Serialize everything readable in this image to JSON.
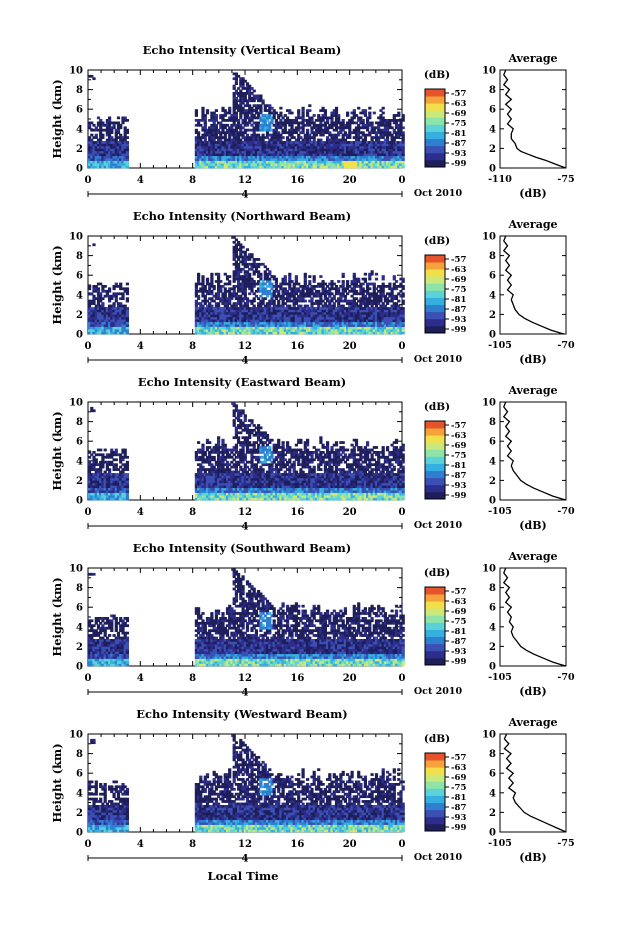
{
  "figure": {
    "xlabel_bottom": "Local Time",
    "date_label": "Oct 2010",
    "day_label": "4",
    "ylabel": "Height (km)",
    "cb_unit": "(dB)",
    "avg_title": "Average",
    "avg_unit": "(dB)"
  },
  "chart_data": [
    {
      "type": "heatmap",
      "title": "Echo Intensity (Vertical Beam)",
      "ylabel": "Height (km)",
      "x_ticks": [
        "0",
        "4",
        "8",
        "12",
        "16",
        "20",
        "0"
      ],
      "y_ticks": [
        "0",
        "2",
        "4",
        "6",
        "8",
        "10"
      ],
      "xlim": [
        0,
        24
      ],
      "ylim": [
        0,
        10
      ],
      "colorbar": {
        "label": "(dB)",
        "ticks": [
          "-57",
          "-63",
          "-69",
          "-75",
          "-81",
          "-87",
          "-93",
          "-99"
        ]
      },
      "data_gap": [
        3,
        8
      ],
      "profile": {
        "title": "Average",
        "xlabel": "(dB)",
        "x_ticks": [
          "-110",
          "-75"
        ],
        "xlim": [
          -110,
          -75
        ],
        "points": [
          [
            -107,
            10
          ],
          [
            -108,
            9.5
          ],
          [
            -106,
            9
          ],
          [
            -108,
            8.5
          ],
          [
            -105,
            8
          ],
          [
            -107,
            7.5
          ],
          [
            -104,
            7
          ],
          [
            -107,
            6.5
          ],
          [
            -104,
            6
          ],
          [
            -106,
            5.5
          ],
          [
            -104,
            5
          ],
          [
            -106,
            4.5
          ],
          [
            -103,
            4
          ],
          [
            -104,
            3.5
          ],
          [
            -104,
            3
          ],
          [
            -102,
            2.5
          ],
          [
            -101,
            2
          ],
          [
            -99,
            1.7
          ],
          [
            -95,
            1.4
          ],
          [
            -91,
            1.1
          ],
          [
            -86,
            0.8
          ],
          [
            -82,
            0.5
          ],
          [
            -78,
            0.2
          ],
          [
            -75,
            0
          ]
        ]
      }
    },
    {
      "type": "heatmap",
      "title": "Echo Intensity (Northward Beam)",
      "ylabel": "Height (km)",
      "x_ticks": [
        "0",
        "4",
        "8",
        "12",
        "16",
        "20",
        "0"
      ],
      "y_ticks": [
        "0",
        "2",
        "4",
        "6",
        "8",
        "10"
      ],
      "xlim": [
        0,
        24
      ],
      "ylim": [
        0,
        10
      ],
      "colorbar": {
        "label": "(dB)",
        "ticks": [
          "-57",
          "-63",
          "-69",
          "-75",
          "-81",
          "-87",
          "-93",
          "-99"
        ]
      },
      "data_gap": [
        3,
        8
      ],
      "profile": {
        "title": "Average",
        "xlabel": "(dB)",
        "x_ticks": [
          "-105",
          "-70"
        ],
        "xlim": [
          -105,
          -70
        ],
        "points": [
          [
            -102,
            10
          ],
          [
            -103,
            9.5
          ],
          [
            -101,
            9
          ],
          [
            -103,
            8.5
          ],
          [
            -100,
            8
          ],
          [
            -102,
            7.5
          ],
          [
            -100,
            7
          ],
          [
            -102,
            6.5
          ],
          [
            -99,
            6
          ],
          [
            -101,
            5.5
          ],
          [
            -99,
            5
          ],
          [
            -101,
            4.5
          ],
          [
            -98,
            4
          ],
          [
            -99,
            3.5
          ],
          [
            -98,
            3
          ],
          [
            -97,
            2.5
          ],
          [
            -95,
            2
          ],
          [
            -92,
            1.6
          ],
          [
            -88,
            1.2
          ],
          [
            -83,
            0.8
          ],
          [
            -78,
            0.4
          ],
          [
            -73,
            0.1
          ],
          [
            -71,
            0
          ]
        ]
      }
    },
    {
      "type": "heatmap",
      "title": "Echo Intensity (Eastward Beam)",
      "ylabel": "Height (km)",
      "x_ticks": [
        "0",
        "4",
        "8",
        "12",
        "16",
        "20",
        "0"
      ],
      "y_ticks": [
        "0",
        "2",
        "4",
        "6",
        "8",
        "10"
      ],
      "xlim": [
        0,
        24
      ],
      "ylim": [
        0,
        10
      ],
      "colorbar": {
        "label": "(dB)",
        "ticks": [
          "-57",
          "-63",
          "-69",
          "-75",
          "-81",
          "-87",
          "-93",
          "-99"
        ]
      },
      "data_gap": [
        3,
        8
      ],
      "profile": {
        "title": "Average",
        "xlabel": "(dB)",
        "x_ticks": [
          "-105",
          "-70"
        ],
        "xlim": [
          -105,
          -70
        ],
        "points": [
          [
            -102,
            10
          ],
          [
            -103,
            9.5
          ],
          [
            -101,
            9
          ],
          [
            -103,
            8.5
          ],
          [
            -100,
            8
          ],
          [
            -102,
            7.5
          ],
          [
            -100,
            7
          ],
          [
            -102,
            6.5
          ],
          [
            -99,
            6
          ],
          [
            -101,
            5.5
          ],
          [
            -99,
            5
          ],
          [
            -101,
            4.5
          ],
          [
            -98,
            4
          ],
          [
            -99,
            3.5
          ],
          [
            -98,
            3
          ],
          [
            -96,
            2.5
          ],
          [
            -94,
            2
          ],
          [
            -91,
            1.6
          ],
          [
            -87,
            1.2
          ],
          [
            -82,
            0.8
          ],
          [
            -77,
            0.4
          ],
          [
            -72,
            0.1
          ],
          [
            -70,
            0
          ]
        ]
      }
    },
    {
      "type": "heatmap",
      "title": "Echo Intensity (Southward Beam)",
      "ylabel": "Height (km)",
      "x_ticks": [
        "0",
        "4",
        "8",
        "12",
        "16",
        "20",
        "0"
      ],
      "y_ticks": [
        "0",
        "2",
        "4",
        "6",
        "8",
        "10"
      ],
      "xlim": [
        0,
        24
      ],
      "ylim": [
        0,
        10
      ],
      "colorbar": {
        "label": "(dB)",
        "ticks": [
          "-57",
          "-63",
          "-69",
          "-75",
          "-81",
          "-87",
          "-93",
          "-99"
        ]
      },
      "data_gap": [
        3,
        8
      ],
      "profile": {
        "title": "Average",
        "xlabel": "(dB)",
        "x_ticks": [
          "-105",
          "-70"
        ],
        "xlim": [
          -105,
          -70
        ],
        "points": [
          [
            -102,
            10
          ],
          [
            -103,
            9.5
          ],
          [
            -101,
            9
          ],
          [
            -103,
            8.5
          ],
          [
            -100,
            8
          ],
          [
            -102,
            7.5
          ],
          [
            -100,
            7
          ],
          [
            -102,
            6.5
          ],
          [
            -99,
            6
          ],
          [
            -101,
            5.5
          ],
          [
            -99,
            5
          ],
          [
            -100,
            4.5
          ],
          [
            -98,
            4
          ],
          [
            -99,
            3.5
          ],
          [
            -98,
            3
          ],
          [
            -96,
            2.5
          ],
          [
            -94,
            2
          ],
          [
            -91,
            1.6
          ],
          [
            -87,
            1.2
          ],
          [
            -82,
            0.8
          ],
          [
            -77,
            0.4
          ],
          [
            -72,
            0.1
          ],
          [
            -70,
            0
          ]
        ]
      }
    },
    {
      "type": "heatmap",
      "title": "Echo Intensity (Westward Beam)",
      "ylabel": "Height (km)",
      "x_ticks": [
        "0",
        "4",
        "8",
        "12",
        "16",
        "20",
        "0"
      ],
      "y_ticks": [
        "0",
        "2",
        "4",
        "6",
        "8",
        "10"
      ],
      "xlim": [
        0,
        24
      ],
      "ylim": [
        0,
        10
      ],
      "colorbar": {
        "label": "(dB)",
        "ticks": [
          "-57",
          "-63",
          "-69",
          "-75",
          "-81",
          "-87",
          "-93",
          "-99"
        ]
      },
      "data_gap": [
        3,
        8
      ],
      "profile": {
        "title": "Average",
        "xlabel": "(dB)",
        "x_ticks": [
          "-105",
          "-75"
        ],
        "xlim": [
          -105,
          -75
        ],
        "points": [
          [
            -102,
            10
          ],
          [
            -103,
            9.5
          ],
          [
            -101,
            9
          ],
          [
            -103,
            8.5
          ],
          [
            -100,
            8
          ],
          [
            -102,
            7.5
          ],
          [
            -100,
            7
          ],
          [
            -102,
            6.5
          ],
          [
            -99,
            6
          ],
          [
            -101,
            5.5
          ],
          [
            -99,
            5
          ],
          [
            -101,
            4.5
          ],
          [
            -98,
            4
          ],
          [
            -99,
            3.5
          ],
          [
            -98,
            3
          ],
          [
            -96,
            2.5
          ],
          [
            -94,
            2
          ],
          [
            -91,
            1.6
          ],
          [
            -87,
            1.2
          ],
          [
            -83,
            0.8
          ],
          [
            -79,
            0.4
          ],
          [
            -76,
            0.1
          ],
          [
            -75,
            0
          ]
        ]
      }
    }
  ],
  "colormap": [
    "#1e1e5a",
    "#2d2d8c",
    "#3b4fb4",
    "#2f7fd0",
    "#35aee0",
    "#5ad2d8",
    "#8de3a8",
    "#cbe87a",
    "#f2e04a",
    "#f5a23a",
    "#e5542b"
  ]
}
